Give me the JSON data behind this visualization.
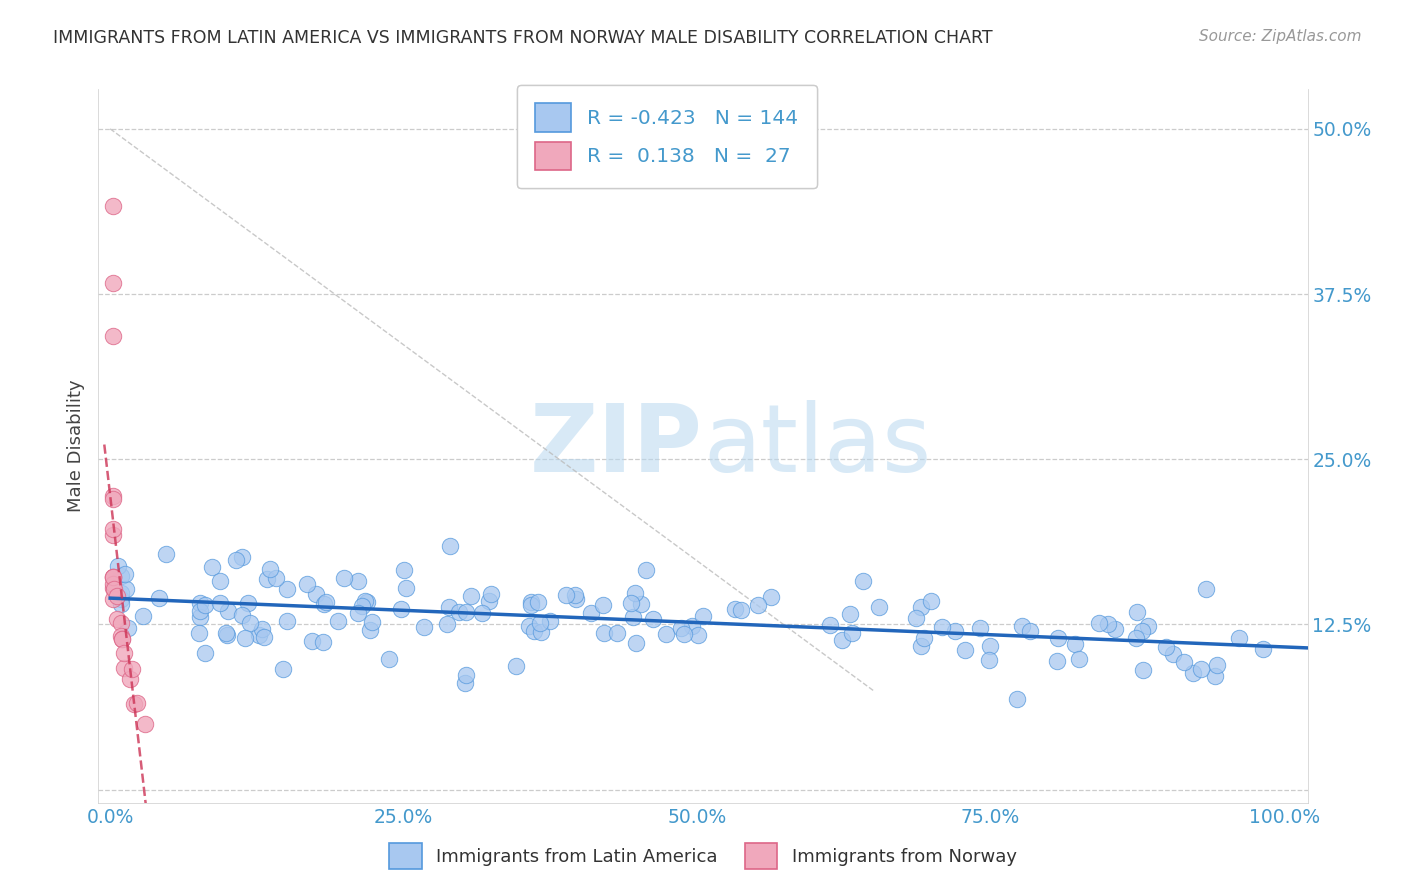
{
  "title": "IMMIGRANTS FROM LATIN AMERICA VS IMMIGRANTS FROM NORWAY MALE DISABILITY CORRELATION CHART",
  "source": "Source: ZipAtlas.com",
  "ylabel": "Male Disability",
  "xlim": [
    -0.01,
    1.02
  ],
  "ylim": [
    -0.01,
    0.53
  ],
  "yticks": [
    0.0,
    0.125,
    0.25,
    0.375,
    0.5
  ],
  "ytick_labels_right": [
    "",
    "12.5%",
    "25.0%",
    "37.5%",
    "50.0%"
  ],
  "xticks": [
    0.0,
    0.25,
    0.5,
    0.75,
    1.0
  ],
  "xtick_labels": [
    "0.0%",
    "25.0%",
    "50.0%",
    "75.0%",
    "100.0%"
  ],
  "legend_R1": "-0.423",
  "legend_N1": "144",
  "legend_R2": "0.138",
  "legend_N2": "27",
  "blue_color": "#a8c8f0",
  "blue_edge": "#5599dd",
  "pink_color": "#f0a8bc",
  "pink_edge": "#dd6688",
  "trend_blue_color": "#2266bb",
  "trend_pink_color": "#cc3355",
  "label_color": "#4499cc",
  "grid_color": "#cccccc",
  "title_color": "#333333",
  "source_color": "#999999",
  "background": "#ffffff",
  "watermark_color": "#b8d8f0",
  "gray_diag_color": "#bbbbbb"
}
